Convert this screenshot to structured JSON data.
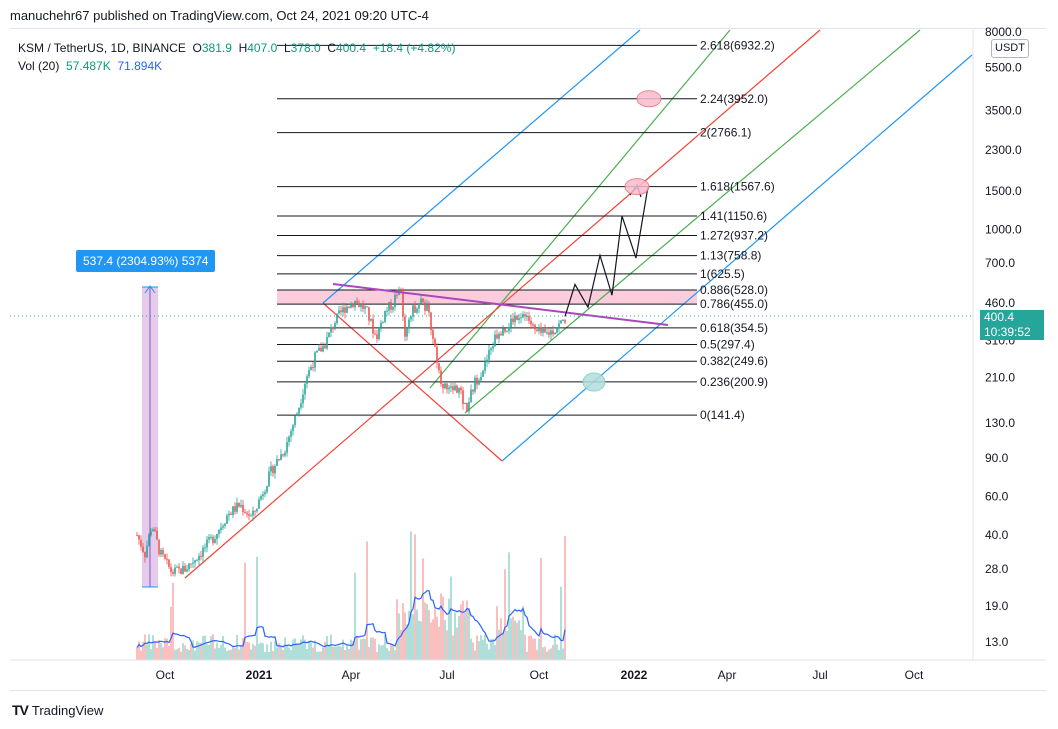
{
  "header": {
    "publisher_line": "manuchehr67 published on TradingView.com, Oct 24, 2021 09:20 UTC-4"
  },
  "legend": {
    "symbol": "KSM / TetherUS, 1D, BINANCE",
    "open_label": "O",
    "open": "381.9",
    "high_label": "H",
    "high": "407.0",
    "low_label": "L",
    "low": "378.0",
    "close_label": "C",
    "close": "400.4",
    "change": "+18.4 (+4.82%)",
    "vol_label": "Vol (20)",
    "vol_value": "57.487K",
    "vol_ma": "71.894K"
  },
  "currency_button": "USDT",
  "price_tag": {
    "price": "400.4",
    "countdown": "10:39:52"
  },
  "measure_label": "537.4 (2304.93%) 5374",
  "footer": {
    "logo": "TradingView"
  },
  "colors": {
    "up": "#26a69a",
    "down": "#ef5350",
    "fib_line": "#131722",
    "channel_blue": "#2196f3",
    "channel_green": "#4caf50",
    "channel_red": "#f44336",
    "trendline": "#ab47bc",
    "vol_ma": "#2962ff",
    "zone": "#f8bbd0"
  },
  "chart_data": {
    "type": "candlestick",
    "title": "",
    "xlabel": "",
    "ylabel": "",
    "y_scale": "log",
    "y_ticks": [
      "8000.0",
      "5500.0",
      "3500.0",
      "2300.0",
      "1500.0",
      "1000.0",
      "700.0",
      "460.0",
      "310.0",
      "210.0",
      "130.0",
      "90.0",
      "60.0",
      "40.0",
      "28.0",
      "19.0",
      "13.0"
    ],
    "y_tick_values": [
      8000,
      5500,
      3500,
      2300,
      1500,
      1000,
      700,
      460,
      310,
      210,
      130,
      90,
      60,
      40,
      28,
      19,
      13
    ],
    "x_ticks": [
      "Oct",
      "2021",
      "Apr",
      "Jul",
      "Oct",
      "2022",
      "Apr",
      "Jul",
      "Oct"
    ],
    "x_tick_bold": [
      false,
      true,
      false,
      false,
      false,
      true,
      false,
      false,
      false
    ],
    "fib_levels": [
      {
        "label": "2.618(6932.2)",
        "value": 6932.2
      },
      {
        "label": "2.24(3952.0)",
        "value": 3952.0
      },
      {
        "label": "2(2766.1)",
        "value": 2766.1
      },
      {
        "label": "1.618(1567.6)",
        "value": 1567.6
      },
      {
        "label": "1.41(1150.6)",
        "value": 1150.6
      },
      {
        "label": "1.272(937.2)",
        "value": 937.2
      },
      {
        "label": "1.13(758.8)",
        "value": 758.8
      },
      {
        "label": "1(625.5)",
        "value": 625.5
      },
      {
        "label": "0.886(528.0)",
        "value": 528.0
      },
      {
        "label": "0.786(455.0)",
        "value": 455.0
      },
      {
        "label": "0.618(354.5)",
        "value": 354.5
      },
      {
        "label": "0.5(297.4)",
        "value": 297.4
      },
      {
        "label": "0.382(249.6)",
        "value": 249.6
      },
      {
        "label": "0.236(200.9)",
        "value": 200.9
      },
      {
        "label": "0(141.4)",
        "value": 141.4
      }
    ],
    "projection_path_prices": [
      400,
      560,
      440,
      760,
      500,
      1150,
      740,
      1567.6
    ],
    "series": [
      {
        "name": "KSM / TetherUS",
        "kind": "price"
      },
      {
        "name": "Vol (20)",
        "kind": "volume"
      }
    ]
  }
}
